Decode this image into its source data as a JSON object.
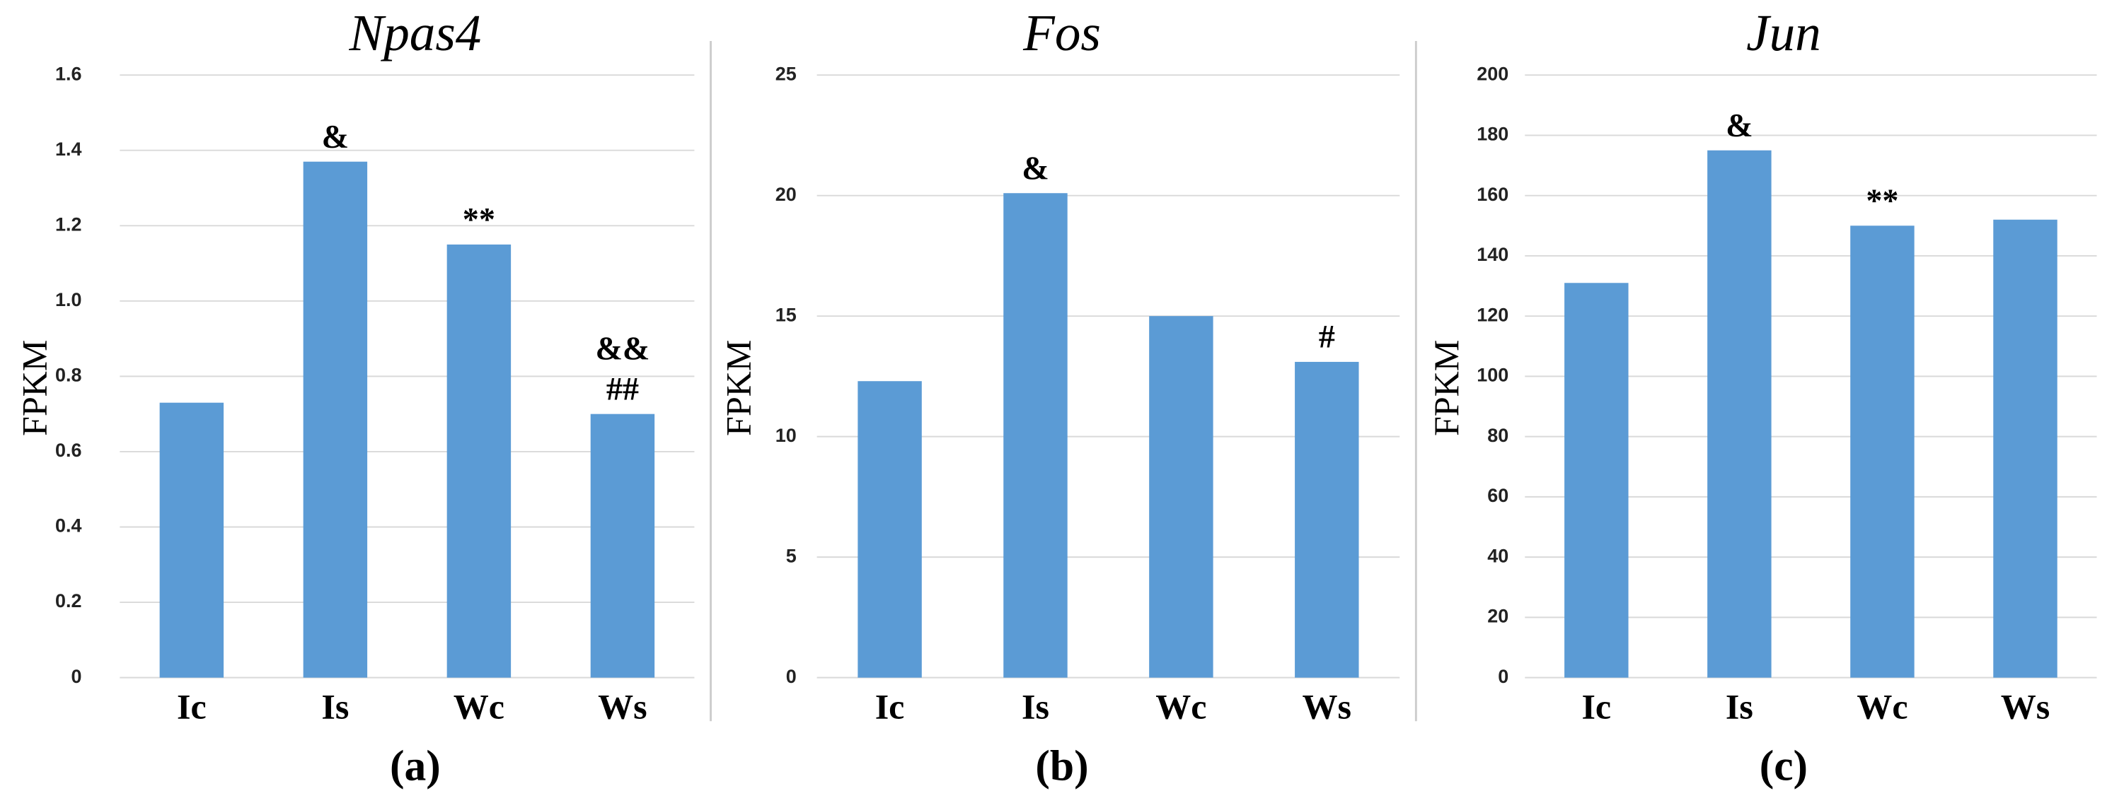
{
  "chart_data": [
    {
      "type": "bar",
      "title": "Npas4",
      "ylabel": "FPKM",
      "panel_label": "(a)",
      "categories": [
        "Ic",
        "Is",
        "Wc",
        "Ws"
      ],
      "values": [
        0.73,
        1.37,
        1.15,
        0.7
      ],
      "color": "#5b9bd5",
      "ylim": [
        0,
        1.6
      ],
      "yticks": [
        0,
        0.2,
        0.4,
        0.6,
        0.8,
        {
          "value": 1.0,
          "label": "1.0"
        },
        1.2,
        1.4,
        1.6
      ],
      "grid": true,
      "annotations": [
        [],
        [
          "&"
        ],
        [
          "**"
        ],
        [
          "&&",
          "##"
        ]
      ]
    },
    {
      "type": "bar",
      "title": "Fos",
      "ylabel": "FPKM",
      "panel_label": "(b)",
      "categories": [
        "Ic",
        "Is",
        "Wc",
        "Ws"
      ],
      "values": [
        12.3,
        20.1,
        15.0,
        13.1
      ],
      "color": "#5b9bd5",
      "ylim": [
        0,
        25
      ],
      "yticks": [
        0,
        5,
        10,
        15,
        20,
        25
      ],
      "grid": true,
      "annotations": [
        [],
        [
          "&"
        ],
        [],
        [
          "#"
        ]
      ]
    },
    {
      "type": "bar",
      "title": "Jun",
      "ylabel": "FPKM",
      "panel_label": "(c)",
      "categories": [
        "Ic",
        "Is",
        "Wc",
        "Ws"
      ],
      "values": [
        131,
        175,
        150,
        152
      ],
      "color": "#5b9bd5",
      "ylim": [
        0,
        200
      ],
      "yticks": [
        0,
        20,
        40,
        60,
        80,
        100,
        120,
        140,
        160,
        180,
        200
      ],
      "grid": true,
      "annotations": [
        [],
        [
          "&"
        ],
        [
          "**"
        ],
        []
      ]
    }
  ]
}
